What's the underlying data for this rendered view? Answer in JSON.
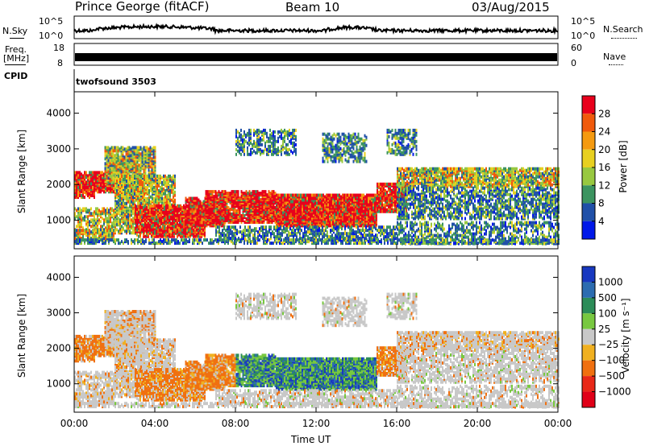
{
  "header": {
    "station": "Prince George (fitACF)",
    "beam": "Beam 10",
    "date": "03/Aug/2015"
  },
  "top_panels": {
    "nsky_label": "N.Sky",
    "nsky_ticks": [
      "10^5",
      "10^0"
    ],
    "nsearch_label": "N.Search",
    "nsearch_ticks": [
      "10^5",
      "10^0"
    ],
    "freq_label": "Freq.",
    "freq_unit": "[MHz]",
    "freq_ticks": [
      "18",
      "8"
    ],
    "nave_label": "Nave",
    "nave_ticks": [
      "60",
      "0"
    ],
    "cpid_label": "CPID",
    "cpid_value": "twofsound 3503"
  },
  "chart_data": [
    {
      "type": "heatmap",
      "name": "power",
      "ylabel": "Slant Range [km]",
      "yticks": [
        1000,
        2000,
        3000,
        4000
      ],
      "ylim": [
        200,
        4600
      ],
      "xlim": [
        0,
        24
      ],
      "xticks": [
        "00:00",
        "04:00",
        "08:00",
        "12:00",
        "16:00",
        "20:00",
        "00:00"
      ],
      "colorbar": {
        "label": "Power [dB]",
        "ticks": [
          "28",
          "24",
          "20",
          "16",
          "12",
          "8",
          "4"
        ],
        "colors": [
          "#e8001c",
          "#f05a0c",
          "#f59a10",
          "#e8d020",
          "#98c840",
          "#3c9460",
          "#2050a8",
          "#0018e8"
        ]
      }
    },
    {
      "type": "heatmap",
      "name": "velocity",
      "ylabel": "Slant Range [km]",
      "yticks": [
        1000,
        2000,
        3000,
        4000
      ],
      "ylim": [
        200,
        4600
      ],
      "xlim": [
        0,
        24
      ],
      "xticks": [
        "00:00",
        "04:00",
        "08:00",
        "12:00",
        "16:00",
        "20:00",
        "00:00"
      ],
      "xlabel": "Time UT",
      "colorbar": {
        "label": "Velocity [m s⁻¹]",
        "ticks": [
          "1000",
          "500",
          "100",
          "25",
          "−25",
          "−100",
          "−500",
          "−1000"
        ],
        "colors": [
          "#1838c0",
          "#2c6cb0",
          "#2c8c58",
          "#78c840",
          "#c8c8c8",
          "#f0b020",
          "#f07010",
          "#e82818",
          "#e00018"
        ]
      }
    }
  ]
}
